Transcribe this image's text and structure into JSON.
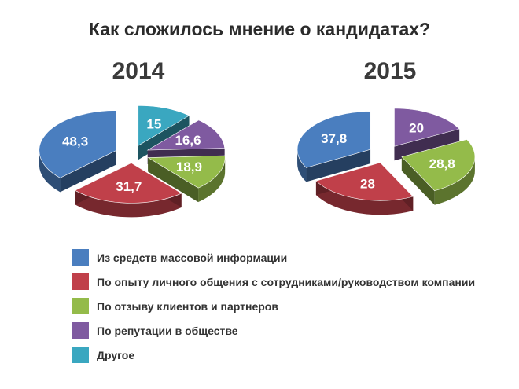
{
  "chart_data": {
    "type": "pie",
    "title": "Как сложилось мнение о кандидатах?",
    "categories": [
      "Из средств массовой информации",
      "По опыту личного общения с сотрудниками/руководством компании",
      "По отзыву клиентов и партнеров",
      "По репутации в обществе",
      "Другое"
    ],
    "colors": [
      "#4a7ebf",
      "#c0404a",
      "#94bb4a",
      "#7f5aa0",
      "#3aa7c0"
    ],
    "legend": "bottom",
    "pies": [
      {
        "label": "2014",
        "values": [
          48.3,
          31.7,
          18.9,
          16.6,
          15
        ],
        "value_labels": [
          "48,3",
          "31,7",
          "18,9",
          "16,6",
          "15"
        ]
      },
      {
        "label": "2015",
        "values": [
          37.8,
          28,
          28.8,
          20,
          null
        ],
        "value_labels": [
          "37,8",
          "28",
          "28,8",
          "20",
          ""
        ]
      }
    ]
  }
}
